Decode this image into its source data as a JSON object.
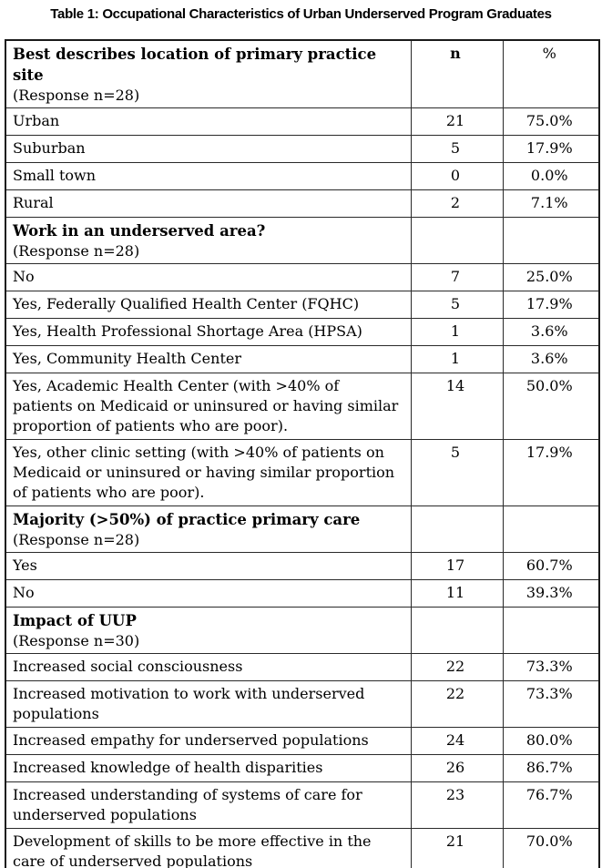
{
  "colors": {
    "background": "#ffffff",
    "text": "#000000",
    "border": "#1a1a1a"
  },
  "caption": "Table 1: Occupational Characteristics of Urban Underserved Program Graduates",
  "table": {
    "columns": {
      "n_label": "n",
      "pct_label": "%"
    },
    "rows": [
      {
        "type": "header",
        "label": "Best describes location of primary practice site",
        "sub": "(Response n=28)",
        "n": "n",
        "pct": "%"
      },
      {
        "type": "data",
        "label": "Urban",
        "n": "21",
        "pct": "75.0%"
      },
      {
        "type": "data",
        "label": "Suburban",
        "n": "5",
        "pct": "17.9%"
      },
      {
        "type": "data",
        "label": "Small town",
        "n": "0",
        "pct": "0.0%"
      },
      {
        "type": "data",
        "label": "Rural",
        "n": "2",
        "pct": "7.1%"
      },
      {
        "type": "section",
        "label": "Work in an underserved area?",
        "sub": "(Response n=28)",
        "n": "",
        "pct": ""
      },
      {
        "type": "data",
        "label": "No",
        "n": "7",
        "pct": "25.0%"
      },
      {
        "type": "data",
        "label": "Yes, Federally Qualified Health Center (FQHC)",
        "n": "5",
        "pct": "17.9%"
      },
      {
        "type": "data",
        "label": "Yes, Health Professional Shortage Area (HPSA)",
        "n": "1",
        "pct": "3.6%"
      },
      {
        "type": "data",
        "label": "Yes, Community Health Center",
        "n": "1",
        "pct": "3.6%"
      },
      {
        "type": "data",
        "label": "Yes, Academic Health Center (with >40% of patients on Medicaid or uninsured or having similar proportion of patients who are poor).",
        "n": "14",
        "pct": "50.0%"
      },
      {
        "type": "data",
        "label": "Yes, other clinic setting (with >40% of patients on Medicaid or uninsured or having similar proportion of patients who are poor).",
        "n": "5",
        "pct": "17.9%"
      },
      {
        "type": "section",
        "label": "Majority (>50%) of practice primary care",
        "sub": "(Response n=28)",
        "n": "",
        "pct": ""
      },
      {
        "type": "data",
        "label": "Yes",
        "n": "17",
        "pct": "60.7%"
      },
      {
        "type": "data",
        "label": "No",
        "n": "11",
        "pct": "39.3%"
      },
      {
        "type": "section",
        "label": "Impact of UUP",
        "sub": "(Response n=30)",
        "n": "",
        "pct": ""
      },
      {
        "type": "data",
        "label": "Increased social consciousness",
        "n": "22",
        "pct": "73.3%"
      },
      {
        "type": "data",
        "label": "Increased motivation to work with underserved populations",
        "n": "22",
        "pct": "73.3%"
      },
      {
        "type": "data",
        "label": "Increased empathy for underserved populations",
        "n": "24",
        "pct": "80.0%"
      },
      {
        "type": "data",
        "label": "Increased knowledge of health disparities",
        "n": "26",
        "pct": "86.7%"
      },
      {
        "type": "data",
        "label": "Increased understanding of systems of care for underserved populations",
        "n": "23",
        "pct": "76.7%"
      },
      {
        "type": "data",
        "label": "Development of skills to be more effective in the care of underserved populations",
        "n": "21",
        "pct": "70.0%"
      }
    ]
  }
}
